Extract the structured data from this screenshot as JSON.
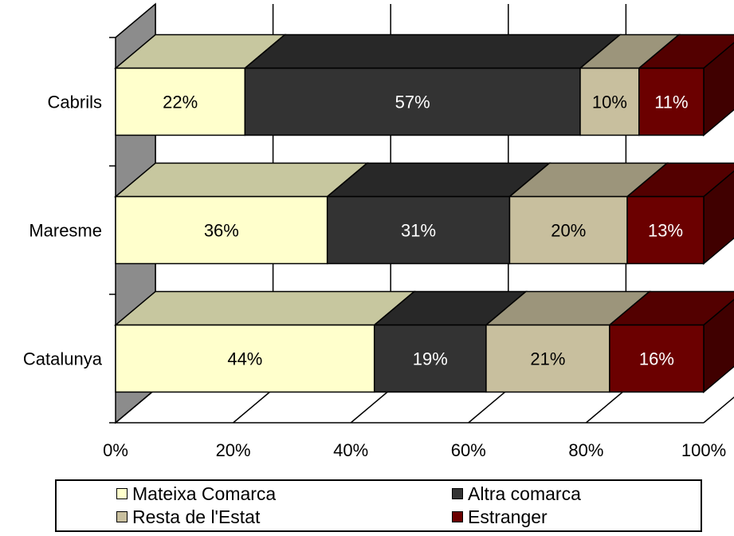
{
  "chart_data": {
    "type": "bar",
    "stacked": true,
    "orientation": "horizontal",
    "percent_stacked": true,
    "three_d": true,
    "categories": [
      "Cabrils",
      "Maresme",
      "Catalunya"
    ],
    "series": [
      {
        "name": "Mateixa Comarca",
        "values": [
          22,
          36,
          44
        ],
        "labels": [
          "22%",
          "36%",
          "44%"
        ],
        "color": "#ffffcc"
      },
      {
        "name": "Altra comarca",
        "values": [
          57,
          31,
          19
        ],
        "labels": [
          "57%",
          "31%",
          "19%"
        ],
        "color": "#333333"
      },
      {
        "name": "Resta de l'Estat",
        "values": [
          10,
          20,
          21
        ],
        "labels": [
          "10%",
          "20%",
          "21%"
        ],
        "color": "#c8bf9e"
      },
      {
        "name": "Estranger",
        "values": [
          11,
          13,
          16
        ],
        "labels": [
          "11%",
          "13%",
          "16%"
        ],
        "color": "#6b0000"
      }
    ],
    "x_ticks": [
      "0%",
      "20%",
      "40%",
      "60%",
      "80%",
      "100%"
    ],
    "xlim": [
      0,
      100
    ],
    "grid": true,
    "legend_position": "bottom",
    "title": "",
    "xlabel": "",
    "ylabel": ""
  },
  "legend": {
    "items": [
      {
        "label": "Mateixa Comarca",
        "color": "#ffffcc"
      },
      {
        "label": "Altra comarca",
        "color": "#333333"
      },
      {
        "label": "Resta de l'Estat",
        "color": "#c8bf9e"
      },
      {
        "label": "Estranger",
        "color": "#6b0000"
      }
    ]
  }
}
